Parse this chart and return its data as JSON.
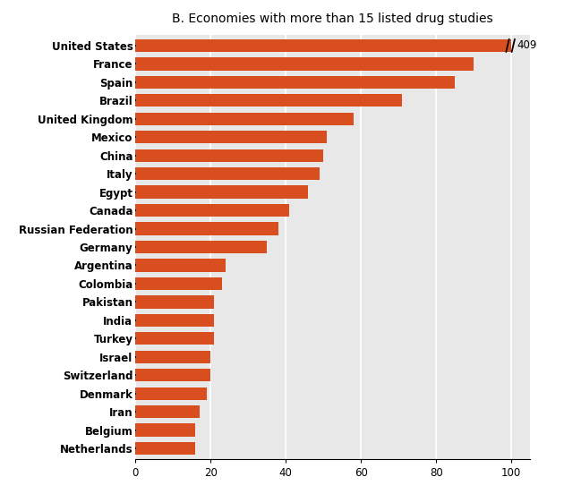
{
  "title": "B. Economies with more than 15 listed drug studies",
  "countries": [
    "Netherlands",
    "Belgium",
    "Iran",
    "Denmark",
    "Switzerland",
    "Israel",
    "Turkey",
    "India",
    "Pakistan",
    "Colombia",
    "Argentina",
    "Germany",
    "Russian Federation",
    "Canada",
    "Egypt",
    "Italy",
    "China",
    "Mexico",
    "United Kingdom",
    "Brazil",
    "Spain",
    "France",
    "United States"
  ],
  "values": [
    16,
    16,
    17,
    19,
    20,
    20,
    21,
    21,
    21,
    23,
    24,
    35,
    38,
    41,
    46,
    49,
    50,
    51,
    58,
    71,
    85,
    90,
    100
  ],
  "actual_value_us": 409,
  "bar_color": "#d94e1f",
  "bg_color": "#ffffff",
  "plot_bg_color": "#e8e8e8",
  "title_fontsize": 10,
  "label_fontsize": 8.5,
  "tick_fontsize": 8.5,
  "xlim": [
    0,
    105
  ],
  "xticks": [
    0,
    20,
    40,
    60,
    80,
    100
  ]
}
